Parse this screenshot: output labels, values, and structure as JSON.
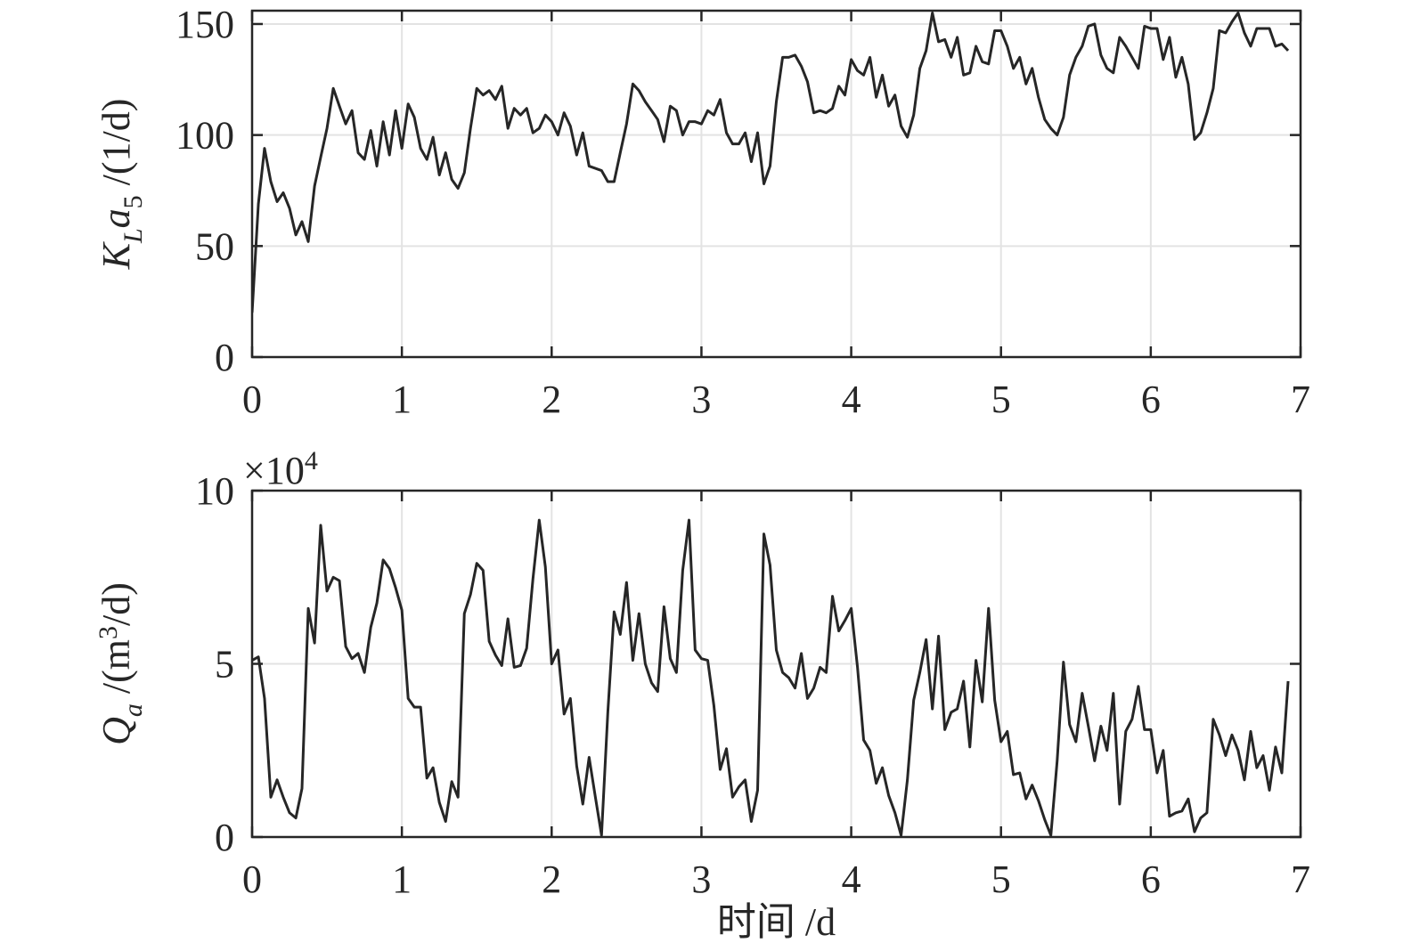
{
  "chart_data": [
    {
      "type": "line",
      "ylabel": [
        "K",
        "L",
        "a",
        "5",
        " /(1/d)"
      ],
      "xlim": [
        0,
        7
      ],
      "xticks": [
        0,
        1,
        2,
        3,
        4,
        5,
        6,
        7
      ],
      "ylim": [
        0,
        156
      ],
      "yticks": [
        0,
        50,
        100,
        150
      ],
      "grid": true,
      "x": [
        0,
        0.042,
        0.083,
        0.125,
        0.167,
        0.208,
        0.25,
        0.292,
        0.333,
        0.375,
        0.417,
        0.458,
        0.5,
        0.542,
        0.583,
        0.625,
        0.667,
        0.708,
        0.75,
        0.792,
        0.833,
        0.875,
        0.917,
        0.958,
        1,
        1.042,
        1.083,
        1.125,
        1.167,
        1.208,
        1.25,
        1.292,
        1.333,
        1.375,
        1.417,
        1.458,
        1.5,
        1.542,
        1.583,
        1.625,
        1.667,
        1.708,
        1.75,
        1.792,
        1.833,
        1.875,
        1.917,
        1.958,
        2,
        2.042,
        2.083,
        2.125,
        2.167,
        2.208,
        2.25,
        2.292,
        2.333,
        2.375,
        2.417,
        2.458,
        2.5,
        2.542,
        2.583,
        2.625,
        2.667,
        2.708,
        2.75,
        2.792,
        2.833,
        2.875,
        2.917,
        2.958,
        3,
        3.042,
        3.083,
        3.125,
        3.167,
        3.208,
        3.25,
        3.292,
        3.333,
        3.375,
        3.417,
        3.458,
        3.5,
        3.542,
        3.583,
        3.625,
        3.667,
        3.708,
        3.75,
        3.792,
        3.833,
        3.875,
        3.917,
        3.958,
        4,
        4.042,
        4.083,
        4.125,
        4.167,
        4.208,
        4.25,
        4.292,
        4.333,
        4.375,
        4.417,
        4.458,
        4.5,
        4.542,
        4.583,
        4.625,
        4.667,
        4.708,
        4.75,
        4.792,
        4.833,
        4.875,
        4.917,
        4.958,
        5,
        5.042,
        5.083,
        5.125,
        5.167,
        5.208,
        5.25,
        5.292,
        5.333,
        5.375,
        5.417,
        5.458,
        5.5,
        5.542,
        5.583,
        5.625,
        5.667,
        5.708,
        5.75,
        5.792,
        5.833,
        5.875,
        5.917,
        5.958,
        6,
        6.042,
        6.083,
        6.125,
        6.167,
        6.208,
        6.25,
        6.292,
        6.333,
        6.375,
        6.417,
        6.458,
        6.5,
        6.542,
        6.583,
        6.625,
        6.667,
        6.708,
        6.75,
        6.792,
        6.833,
        6.875,
        6.917
      ],
      "series": [
        {
          "color": "#262626",
          "values": [
            20,
            69,
            94,
            79,
            70,
            74,
            67,
            55,
            61,
            52,
            77,
            90,
            103,
            121,
            113,
            105,
            111,
            92,
            89,
            102,
            86,
            106,
            91,
            111,
            94,
            114,
            108,
            94,
            89,
            99,
            82,
            92,
            80,
            76,
            83,
            103,
            121,
            118,
            120,
            116,
            122,
            103,
            112,
            109,
            112,
            101,
            103,
            109,
            106,
            100,
            110,
            104,
            91,
            101,
            86,
            85,
            84,
            79,
            79,
            92,
            105,
            123,
            120,
            115,
            111,
            107,
            97,
            113,
            111,
            100,
            106,
            106,
            105,
            111,
            109,
            116,
            101,
            96,
            96,
            101,
            88,
            101,
            78,
            86,
            115,
            135,
            135,
            136,
            131,
            124,
            110,
            111,
            110,
            112,
            122,
            118,
            134,
            129,
            127,
            135,
            117,
            127,
            113,
            118,
            104,
            99,
            109,
            130,
            138,
            155,
            142,
            143,
            135,
            144,
            127,
            128,
            140,
            133,
            132,
            147,
            147,
            140,
            130,
            135,
            123,
            130,
            117,
            107,
            103,
            100,
            108,
            127,
            135,
            140,
            149,
            150,
            136,
            130,
            128,
            144,
            140,
            135,
            130,
            149,
            148,
            148,
            134,
            144,
            126,
            135,
            123,
            98,
            101,
            110,
            121,
            147,
            146,
            151,
            155,
            146,
            140,
            148,
            148,
            148,
            140,
            141,
            138
          ]
        }
      ]
    },
    {
      "type": "line",
      "ylabel": [
        "Q",
        "a",
        " /(m",
        "3",
        "/d)"
      ],
      "xlabel": "时间 /d",
      "multiplier": [
        "×10",
        "4"
      ],
      "xlim": [
        0,
        7
      ],
      "xticks": [
        0,
        1,
        2,
        3,
        4,
        5,
        6,
        7
      ],
      "ylim": [
        0,
        10
      ],
      "yticks": [
        0,
        5,
        10
      ],
      "grid": true,
      "x": [
        0,
        0.042,
        0.083,
        0.125,
        0.167,
        0.208,
        0.25,
        0.292,
        0.333,
        0.375,
        0.417,
        0.458,
        0.5,
        0.542,
        0.583,
        0.625,
        0.667,
        0.708,
        0.75,
        0.792,
        0.833,
        0.875,
        0.917,
        0.958,
        1,
        1.042,
        1.083,
        1.125,
        1.167,
        1.208,
        1.25,
        1.292,
        1.333,
        1.375,
        1.417,
        1.458,
        1.5,
        1.542,
        1.583,
        1.625,
        1.667,
        1.708,
        1.75,
        1.792,
        1.833,
        1.875,
        1.917,
        1.958,
        2,
        2.042,
        2.083,
        2.125,
        2.167,
        2.208,
        2.25,
        2.292,
        2.333,
        2.375,
        2.417,
        2.458,
        2.5,
        2.542,
        2.583,
        2.625,
        2.667,
        2.708,
        2.75,
        2.792,
        2.833,
        2.875,
        2.917,
        2.958,
        3,
        3.042,
        3.083,
        3.125,
        3.167,
        3.208,
        3.25,
        3.292,
        3.333,
        3.375,
        3.417,
        3.458,
        3.5,
        3.542,
        3.583,
        3.625,
        3.667,
        3.708,
        3.75,
        3.792,
        3.833,
        3.875,
        3.917,
        3.958,
        4,
        4.042,
        4.083,
        4.125,
        4.167,
        4.208,
        4.25,
        4.292,
        4.333,
        4.375,
        4.417,
        4.458,
        4.5,
        4.542,
        4.583,
        4.625,
        4.667,
        4.708,
        4.75,
        4.792,
        4.833,
        4.875,
        4.917,
        4.958,
        5,
        5.042,
        5.083,
        5.125,
        5.167,
        5.208,
        5.25,
        5.292,
        5.333,
        5.375,
        5.417,
        5.458,
        5.5,
        5.542,
        5.583,
        5.625,
        5.667,
        5.708,
        5.75,
        5.792,
        5.833,
        5.875,
        5.917,
        5.958,
        6,
        6.042,
        6.083,
        6.125,
        6.167,
        6.208,
        6.25,
        6.292,
        6.333,
        6.375,
        6.417,
        6.458,
        6.5,
        6.542,
        6.583,
        6.625,
        6.667,
        6.708,
        6.75,
        6.792,
        6.833,
        6.875,
        6.917
      ],
      "series": [
        {
          "color": "#262626",
          "values": [
            5.1,
            5.2,
            4.0,
            1.15,
            1.65,
            1.15,
            0.7,
            0.55,
            1.4,
            6.6,
            5.6,
            9.0,
            7.1,
            7.5,
            7.4,
            5.5,
            5.15,
            5.3,
            4.75,
            6.05,
            6.75,
            8.0,
            7.75,
            7.2,
            6.55,
            4.0,
            3.75,
            3.75,
            1.7,
            2.0,
            1.0,
            0.45,
            1.6,
            1.15,
            6.45,
            7.0,
            7.9,
            7.7,
            5.65,
            5.25,
            4.95,
            6.3,
            4.9,
            4.95,
            5.45,
            7.45,
            9.15,
            7.8,
            5.0,
            5.4,
            3.55,
            4.0,
            2.05,
            0.95,
            2.3,
            1.15,
            0.05,
            3.6,
            6.5,
            5.85,
            7.35,
            5.1,
            6.45,
            5.0,
            4.45,
            4.2,
            6.65,
            5.15,
            4.75,
            7.7,
            9.15,
            5.4,
            5.15,
            5.1,
            3.8,
            1.95,
            2.55,
            1.15,
            1.45,
            1.65,
            0.45,
            1.35,
            8.75,
            7.85,
            5.4,
            4.75,
            4.6,
            4.3,
            5.3,
            4.0,
            4.3,
            4.9,
            4.75,
            6.95,
            5.95,
            6.25,
            6.6,
            4.9,
            2.8,
            2.5,
            1.55,
            2.0,
            1.2,
            0.7,
            0.05,
            1.65,
            3.95,
            4.75,
            5.7,
            3.7,
            5.8,
            3.1,
            3.6,
            3.7,
            4.5,
            2.6,
            5.1,
            3.9,
            6.6,
            3.95,
            2.75,
            3.05,
            1.8,
            1.85,
            1.1,
            1.5,
            1.05,
            0.5,
            0.05,
            2.2,
            5.05,
            3.25,
            2.75,
            4.15,
            3.2,
            2.2,
            3.2,
            2.5,
            4.15,
            0.95,
            3.05,
            3.4,
            4.35,
            3.1,
            3.1,
            1.85,
            2.5,
            0.6,
            0.7,
            0.75,
            1.1,
            0.15,
            0.55,
            0.7,
            3.4,
            2.95,
            2.35,
            2.95,
            2.5,
            1.65,
            3.05,
            2.0,
            2.35,
            1.35,
            2.6,
            1.85,
            4.5
          ]
        }
      ]
    }
  ]
}
